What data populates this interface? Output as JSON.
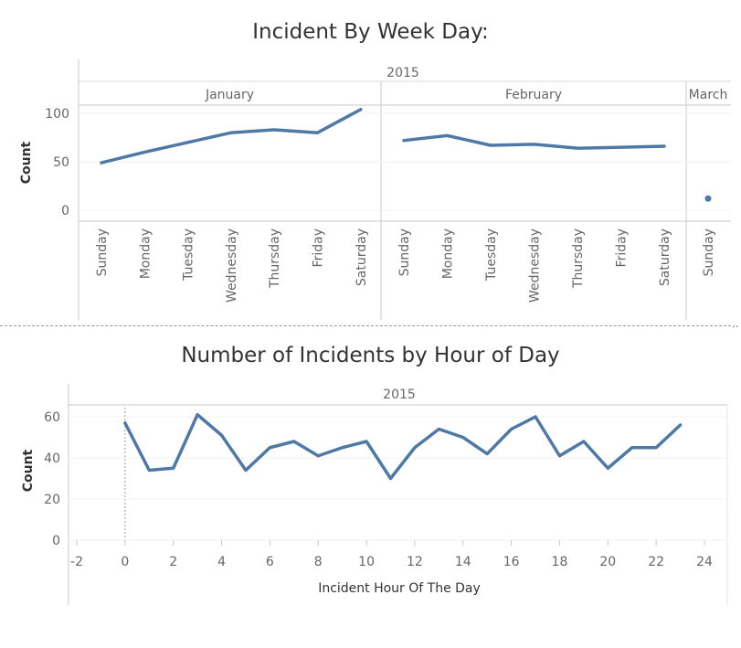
{
  "chart_data": [
    {
      "type": "line",
      "title": "Incident By Week Day:",
      "year": "2015",
      "ylabel": "Count",
      "ylim": [
        0,
        100
      ],
      "yticks": [
        "0",
        "50",
        "100"
      ],
      "color": "#4e79a7",
      "panes": [
        {
          "month": "January",
          "categories": [
            "Sunday",
            "Monday",
            "Tuesday",
            "Wednesday",
            "Thursday",
            "Friday",
            "Saturday"
          ],
          "values": [
            49,
            60,
            70,
            80,
            83,
            80,
            104
          ]
        },
        {
          "month": "February",
          "categories": [
            "Sunday",
            "Monday",
            "Tuesday",
            "Wednesday",
            "Thursday",
            "Friday",
            "Saturday"
          ],
          "values": [
            72,
            77,
            67,
            68,
            64,
            65,
            66
          ]
        },
        {
          "month": "March",
          "categories": [
            "Sunday"
          ],
          "values": [
            12
          ]
        }
      ]
    },
    {
      "type": "line",
      "title": "Number of Incidents by Hour of Day",
      "year": "2015",
      "xlabel": "Incident Hour Of The Day",
      "ylabel": "Count",
      "xlim": [
        -2,
        24
      ],
      "ylim": [
        0,
        60
      ],
      "xticks": [
        "-2",
        "0",
        "2",
        "4",
        "6",
        "8",
        "10",
        "12",
        "14",
        "16",
        "18",
        "20",
        "22",
        "24"
      ],
      "yticks": [
        "0",
        "20",
        "40",
        "60"
      ],
      "color": "#4e79a7",
      "x": [
        0,
        1,
        2,
        3,
        4,
        5,
        6,
        7,
        8,
        9,
        10,
        11,
        12,
        13,
        14,
        15,
        16,
        17,
        18,
        19,
        20,
        21,
        22,
        23
      ],
      "values": [
        57,
        34,
        35,
        61,
        51,
        34,
        45,
        48,
        41,
        45,
        48,
        30,
        45,
        54,
        50,
        42,
        54,
        60,
        41,
        48,
        35,
        45,
        45,
        56
      ]
    }
  ]
}
